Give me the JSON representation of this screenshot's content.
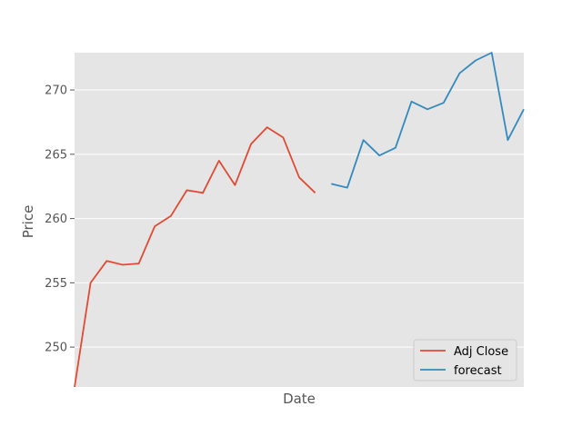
{
  "chart_data": {
    "type": "line",
    "xlabel": "Date",
    "ylabel": "Price",
    "ylim": [
      246.9,
      272.9
    ],
    "yticks": [
      250,
      255,
      260,
      265,
      270
    ],
    "ytick_labels": [
      "250",
      "255",
      "260",
      "265",
      "270"
    ],
    "x_ticks_shown": false,
    "grid": true,
    "legend_position": "lower-right",
    "series": [
      {
        "name": "Adj Close",
        "color": "#E24A33",
        "x": [
          0,
          1,
          2,
          3,
          4,
          5,
          6,
          7,
          8,
          9,
          10,
          11,
          12,
          13,
          14,
          15
        ],
        "values": [
          246.9,
          255.0,
          256.7,
          256.4,
          256.5,
          259.4,
          260.2,
          262.2,
          262.0,
          264.5,
          262.6,
          265.8,
          267.1,
          266.3,
          263.2,
          262.0
        ]
      },
      {
        "name": "forecast",
        "color": "#348ABD",
        "x": [
          16,
          17,
          18,
          19,
          20,
          21,
          22,
          23,
          24,
          25,
          26,
          27,
          28
        ],
        "values": [
          262.7,
          262.4,
          266.1,
          264.9,
          265.5,
          269.1,
          268.5,
          269.0,
          271.3,
          272.3,
          272.9,
          266.1,
          268.5
        ]
      }
    ]
  }
}
